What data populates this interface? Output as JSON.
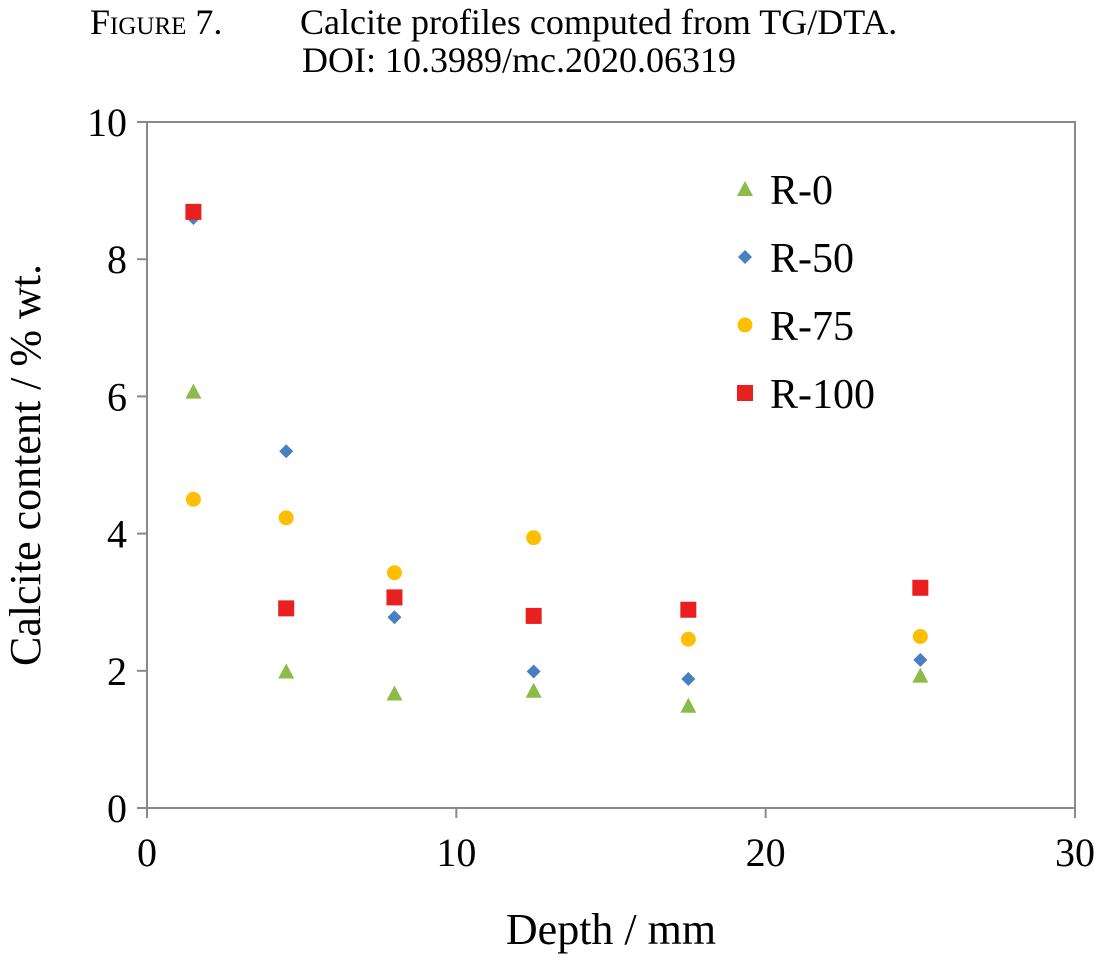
{
  "caption": {
    "figure_prefix": "Figure",
    "figure_number": " 7.",
    "title": "Calcite profiles computed from TG/DTA.",
    "doi": "DOI: 10.3989/mc.2020.06319"
  },
  "chart_data": {
    "type": "scatter",
    "xlabel": "Depth / mm",
    "ylabel": "Calcite content / % wt.",
    "xlim": [
      0,
      30
    ],
    "ylim": [
      0,
      10
    ],
    "xticks": [
      0,
      10,
      20,
      30
    ],
    "yticks": [
      0,
      2,
      4,
      6,
      8,
      10
    ],
    "grid": false,
    "legend_position": "top-right",
    "x": [
      1.5,
      4.5,
      8,
      12.5,
      17.5,
      25
    ],
    "series": [
      {
        "name": "R-0",
        "marker": "triangle",
        "color": "#8dbb4a",
        "values": [
          6.07,
          1.99,
          1.67,
          1.71,
          1.49,
          1.93
        ]
      },
      {
        "name": "R-50",
        "marker": "diamond",
        "color": "#4a7ec3",
        "values": [
          8.6,
          5.2,
          2.78,
          1.99,
          1.88,
          2.16
        ]
      },
      {
        "name": "R-75",
        "marker": "circle",
        "color": "#ffbf00",
        "values": [
          4.5,
          4.23,
          3.43,
          3.94,
          2.46,
          2.5
        ]
      },
      {
        "name": "R-100",
        "marker": "square",
        "color": "#e8201f",
        "values": [
          8.69,
          2.91,
          3.07,
          2.8,
          2.89,
          3.21
        ]
      }
    ]
  }
}
